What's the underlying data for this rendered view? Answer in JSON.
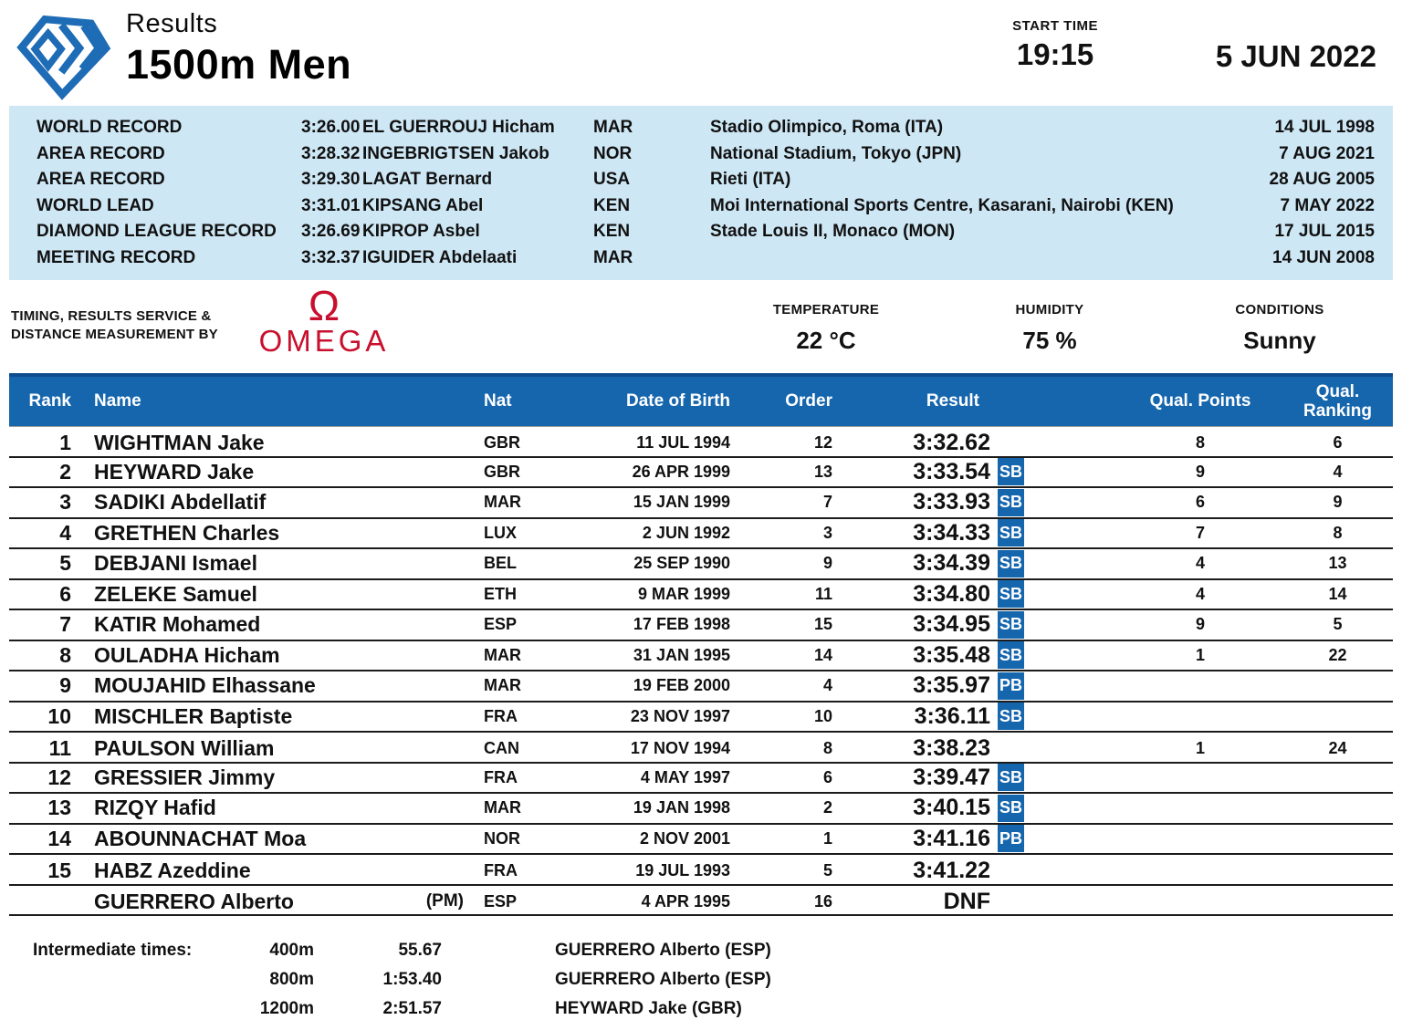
{
  "header": {
    "results_label": "Results",
    "event_title": "1500m Men",
    "start_time_label": "START TIME",
    "start_time": "19:15",
    "date": "5 JUN 2022"
  },
  "records": [
    {
      "label": "WORLD RECORD",
      "time": "3:26.00",
      "athlete": "EL GUERROUJ Hicham",
      "nat": "MAR",
      "venue": "Stadio Olimpico, Roma (ITA)",
      "date": "14 JUL 1998"
    },
    {
      "label": "AREA RECORD",
      "time": "3:28.32",
      "athlete": "INGEBRIGTSEN Jakob",
      "nat": "NOR",
      "venue": "National Stadium, Tokyo (JPN)",
      "date": "7 AUG 2021"
    },
    {
      "label": "AREA RECORD",
      "time": "3:29.30",
      "athlete": "LAGAT Bernard",
      "nat": "USA",
      "venue": "Rieti (ITA)",
      "date": "28 AUG 2005"
    },
    {
      "label": "WORLD LEAD",
      "time": "3:31.01",
      "athlete": "KIPSANG Abel",
      "nat": "KEN",
      "venue": "Moi International Sports Centre, Kasarani, Nairobi (KEN)",
      "date": "7 MAY 2022"
    },
    {
      "label": "DIAMOND LEAGUE RECORD",
      "time": "3:26.69",
      "athlete": "KIPROP Asbel",
      "nat": "KEN",
      "venue": "Stade Louis II, Monaco (MON)",
      "date": "17 JUL 2015"
    },
    {
      "label": "MEETING RECORD",
      "time": "3:32.37",
      "athlete": "IGUIDER Abdelaati",
      "nat": "MAR",
      "venue": "",
      "date": "14 JUN 2008"
    }
  ],
  "service": {
    "timing_line1": "TIMING, RESULTS SERVICE &",
    "timing_line2": "DISTANCE MEASUREMENT BY",
    "omega_symbol": "Ω",
    "omega_word": "OMEGA",
    "temperature_label": "TEMPERATURE",
    "temperature": "22 °C",
    "humidity_label": "HUMIDITY",
    "humidity": "75 %",
    "conditions_label": "CONDITIONS",
    "conditions": "Sunny"
  },
  "table": {
    "headers": {
      "rank": "Rank",
      "name": "Name",
      "nat": "Nat",
      "dob": "Date of Birth",
      "order": "Order",
      "result": "Result",
      "qual_points": "Qual. Points",
      "qual_ranking": "Qual. Ranking"
    },
    "rows": [
      {
        "rank": "1",
        "name": "WIGHTMAN Jake",
        "note": "",
        "nat": "GBR",
        "dob": "11 JUL 1994",
        "order": "12",
        "result": "3:32.62",
        "badge": "",
        "qual_points": "8",
        "qual_ranking": "6"
      },
      {
        "rank": "2",
        "name": "HEYWARD Jake",
        "note": "",
        "nat": "GBR",
        "dob": "26 APR 1999",
        "order": "13",
        "result": "3:33.54",
        "badge": "SB",
        "qual_points": "9",
        "qual_ranking": "4"
      },
      {
        "rank": "3",
        "name": "SADIKI Abdellatif",
        "note": "",
        "nat": "MAR",
        "dob": "15 JAN 1999",
        "order": "7",
        "result": "3:33.93",
        "badge": "SB",
        "qual_points": "6",
        "qual_ranking": "9"
      },
      {
        "rank": "4",
        "name": "GRETHEN Charles",
        "note": "",
        "nat": "LUX",
        "dob": "2 JUN 1992",
        "order": "3",
        "result": "3:34.33",
        "badge": "SB",
        "qual_points": "7",
        "qual_ranking": "8"
      },
      {
        "rank": "5",
        "name": "DEBJANI Ismael",
        "note": "",
        "nat": "BEL",
        "dob": "25 SEP 1990",
        "order": "9",
        "result": "3:34.39",
        "badge": "SB",
        "qual_points": "4",
        "qual_ranking": "13"
      },
      {
        "rank": "6",
        "name": "ZELEKE Samuel",
        "note": "",
        "nat": "ETH",
        "dob": "9 MAR 1999",
        "order": "11",
        "result": "3:34.80",
        "badge": "SB",
        "qual_points": "4",
        "qual_ranking": "14"
      },
      {
        "rank": "7",
        "name": "KATIR Mohamed",
        "note": "",
        "nat": "ESP",
        "dob": "17 FEB 1998",
        "order": "15",
        "result": "3:34.95",
        "badge": "SB",
        "qual_points": "9",
        "qual_ranking": "5"
      },
      {
        "rank": "8",
        "name": "OULADHA Hicham",
        "note": "",
        "nat": "MAR",
        "dob": "31 JAN 1995",
        "order": "14",
        "result": "3:35.48",
        "badge": "SB",
        "qual_points": "1",
        "qual_ranking": "22"
      },
      {
        "rank": "9",
        "name": "MOUJAHID Elhassane",
        "note": "",
        "nat": "MAR",
        "dob": "19 FEB 2000",
        "order": "4",
        "result": "3:35.97",
        "badge": "PB",
        "qual_points": "",
        "qual_ranking": ""
      },
      {
        "rank": "10",
        "name": "MISCHLER Baptiste",
        "note": "",
        "nat": "FRA",
        "dob": "23 NOV 1997",
        "order": "10",
        "result": "3:36.11",
        "badge": "SB",
        "qual_points": "",
        "qual_ranking": ""
      },
      {
        "rank": "11",
        "name": "PAULSON William",
        "note": "",
        "nat": "CAN",
        "dob": "17 NOV 1994",
        "order": "8",
        "result": "3:38.23",
        "badge": "",
        "qual_points": "1",
        "qual_ranking": "24"
      },
      {
        "rank": "12",
        "name": "GRESSIER Jimmy",
        "note": "",
        "nat": "FRA",
        "dob": "4 MAY 1997",
        "order": "6",
        "result": "3:39.47",
        "badge": "SB",
        "qual_points": "",
        "qual_ranking": ""
      },
      {
        "rank": "13",
        "name": "RIZQY Hafid",
        "note": "",
        "nat": "MAR",
        "dob": "19 JAN 1998",
        "order": "2",
        "result": "3:40.15",
        "badge": "SB",
        "qual_points": "",
        "qual_ranking": ""
      },
      {
        "rank": "14",
        "name": "ABOUNNACHAT Moa",
        "note": "",
        "nat": "NOR",
        "dob": "2 NOV 2001",
        "order": "1",
        "result": "3:41.16",
        "badge": "PB",
        "qual_points": "",
        "qual_ranking": ""
      },
      {
        "rank": "15",
        "name": "HABZ Azeddine",
        "note": "",
        "nat": "FRA",
        "dob": "19 JUL 1993",
        "order": "5",
        "result": "3:41.22",
        "badge": "",
        "qual_points": "",
        "qual_ranking": ""
      },
      {
        "rank": "",
        "name": "GUERRERO Alberto",
        "note": "(PM)",
        "nat": "ESP",
        "dob": "4 APR 1995",
        "order": "16",
        "result": "DNF",
        "badge": "",
        "qual_points": "",
        "qual_ranking": ""
      }
    ]
  },
  "intermediate": {
    "label": "Intermediate times:",
    "splits": [
      {
        "distance": "400m",
        "time": "55.67",
        "athlete": "GUERRERO Alberto (ESP)"
      },
      {
        "distance": "800m",
        "time": "1:53.40",
        "athlete": "GUERRERO Alberto (ESP)"
      },
      {
        "distance": "1200m",
        "time": "2:51.57",
        "athlete": "HEYWARD Jake (GBR)"
      }
    ]
  },
  "colors": {
    "table_header_blue": "#1666AE",
    "table_header_top_border": "#0D4D8E",
    "records_background": "#CEE7F5",
    "badge_blue": "#1666AE",
    "logo_blue": "#1D6CB5",
    "omega_red": "#C8102E"
  }
}
